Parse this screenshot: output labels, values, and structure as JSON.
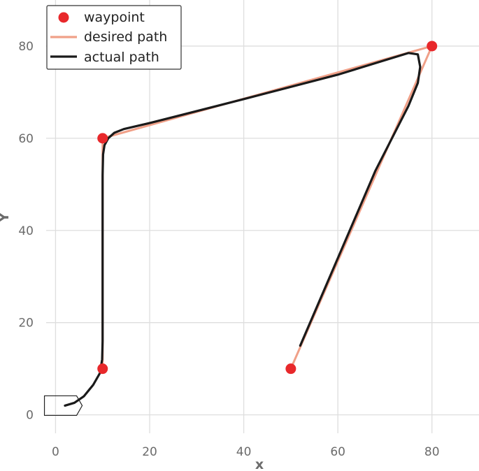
{
  "chart_data": {
    "type": "line",
    "title": "",
    "xlabel": "x",
    "ylabel": "Y",
    "xlim": [
      -2,
      90
    ],
    "ylim": [
      -4,
      90
    ],
    "xticks": [
      0,
      20,
      40,
      60,
      80
    ],
    "yticks": [
      0,
      20,
      40,
      60,
      80
    ],
    "grid": true,
    "legend_placement": "top-left",
    "colors": {
      "waypoint": "#e8282b",
      "desired": "#f0a088",
      "actual": "#1a1a1a"
    },
    "legend": [
      {
        "label": "waypoint",
        "marker": "dot"
      },
      {
        "label": "desired path",
        "marker": "line-desired"
      },
      {
        "label": "actual path",
        "marker": "line-actual"
      }
    ],
    "waypoints": {
      "name": "waypoint",
      "x": [
        10,
        10,
        80,
        50
      ],
      "y": [
        10,
        60,
        80,
        10
      ]
    },
    "desired_path": {
      "name": "desired path",
      "x": [
        10,
        10,
        80,
        50
      ],
      "y": [
        10,
        60,
        80,
        10
      ]
    },
    "actual_path": {
      "name": "actual path",
      "x": [
        2,
        4,
        6,
        8,
        9.4,
        9.9,
        10,
        10,
        10,
        10,
        10.1,
        10.4,
        11.2,
        12.5,
        14.5,
        20,
        40,
        60,
        75,
        77,
        77.5,
        77,
        75,
        68,
        60,
        52
      ],
      "y": [
        2,
        2.6,
        4,
        6.5,
        9,
        12,
        16,
        25,
        40,
        52,
        56.5,
        58.5,
        60,
        61.2,
        62,
        63.3,
        68.5,
        73.8,
        78.5,
        78.2,
        75.5,
        72,
        67,
        53,
        34,
        15
      ]
    },
    "vehicle": {
      "shape": "arrow-box",
      "x": 1.5,
      "y": 2,
      "heading_deg": 0
    }
  }
}
